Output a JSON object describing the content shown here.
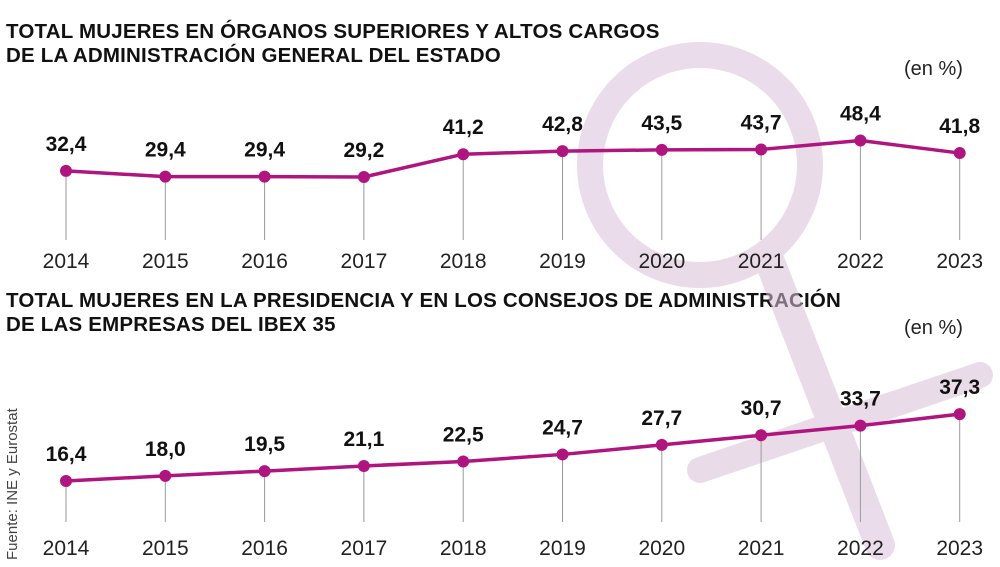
{
  "chart_data": [
    {
      "type": "line",
      "title": "TOTAL MUJERES EN ÓRGANOS SUPERIORES Y ALTOS CARGOS DE LA ADMINISTRACIÓN GENERAL DEL ESTADO",
      "title_lines": [
        "TOTAL MUJERES EN ÓRGANOS SUPERIORES Y ALTOS CARGOS",
        "DE LA ADMINISTRACIÓN GENERAL DEL ESTADO"
      ],
      "unit_label": "(en %)",
      "x": [
        "2014",
        "2015",
        "2016",
        "2017",
        "2018",
        "2019",
        "2020",
        "2021",
        "2022",
        "2023"
      ],
      "values": [
        32.4,
        29.4,
        29.4,
        29.2,
        41.2,
        42.8,
        43.5,
        43.7,
        48.4,
        41.8
      ],
      "value_labels": [
        "32,4",
        "29,4",
        "29,4",
        "29,2",
        "41,2",
        "42,8",
        "43,5",
        "43,7",
        "48,4",
        "41,8"
      ],
      "ylim": [
        0,
        100
      ]
    },
    {
      "type": "line",
      "title": "TOTAL MUJERES EN LA PRESIDENCIA Y EN LOS CONSEJOS DE ADMINISTRACIÓN DE LAS EMPRESAS DEL IBEX 35",
      "title_lines": [
        "TOTAL MUJERES EN LA PRESIDENCIA Y EN LOS CONSEJOS DE ADMINISTRACIÓN",
        "DE LAS EMPRESAS DEL IBEX 35"
      ],
      "unit_label": "(en %)",
      "x": [
        "2014",
        "2015",
        "2016",
        "2017",
        "2018",
        "2019",
        "2020",
        "2021",
        "2022",
        "2023"
      ],
      "values": [
        16.4,
        18.0,
        19.5,
        21.1,
        22.5,
        24.7,
        27.7,
        30.7,
        33.7,
        37.3
      ],
      "value_labels": [
        "16,4",
        "18,0",
        "19,5",
        "21,1",
        "22,5",
        "24,7",
        "27,7",
        "30,7",
        "33,7",
        "37,3"
      ],
      "ylim": [
        0,
        100
      ]
    }
  ],
  "source": "Fuente: INE y Eurostat",
  "colors": {
    "line": "#b0157f",
    "marker": "#b0157f",
    "grid": "#9a9a9a",
    "watermark": "#d9bfd8"
  },
  "watermark_icon": "female-symbol-icon"
}
